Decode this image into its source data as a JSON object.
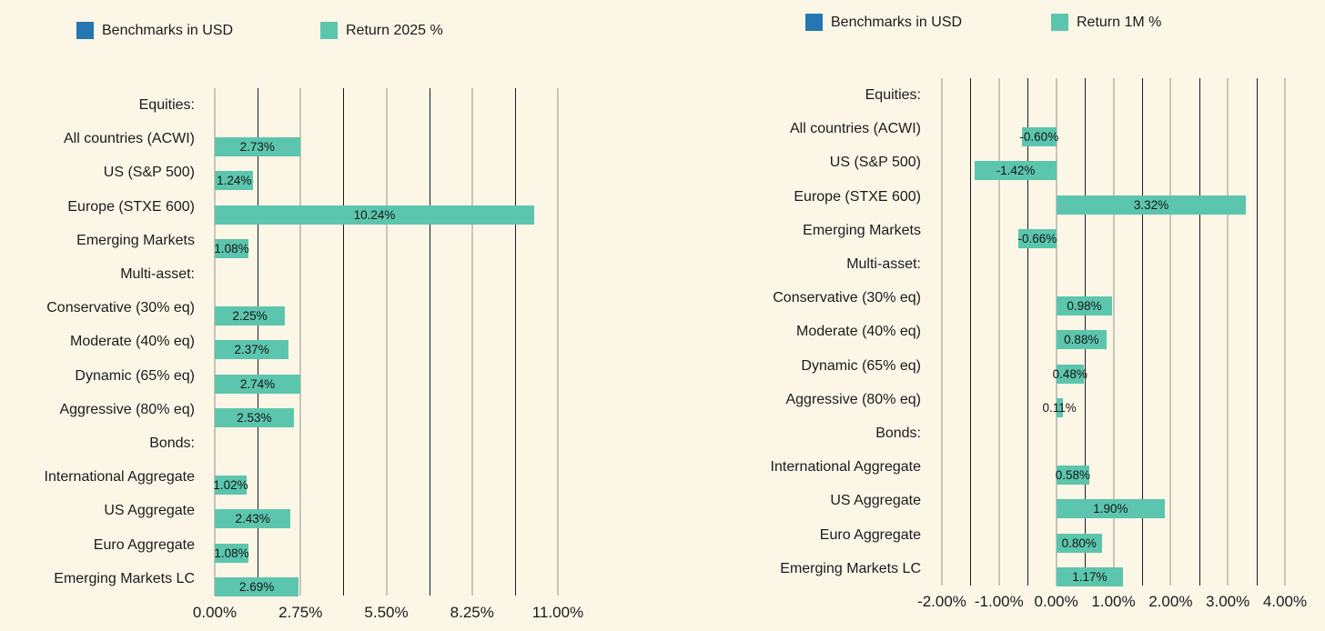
{
  "background_color": "#FCF6E7",
  "colors": {
    "bar_teal": "#5CC5AD",
    "legend_blue": "#2577B2",
    "text": "#1B1B1B",
    "grid_major": "#C9C4B9",
    "grid_minor": "#1C1C1C"
  },
  "chart_data": [
    {
      "type": "bar",
      "orientation": "horizontal",
      "legend": [
        {
          "label": "Benchmarks in USD",
          "color": "#2577B2"
        },
        {
          "label": "Return 2025 %",
          "color": "#5CC5AD"
        }
      ],
      "axis": {
        "min": 0,
        "max": 11,
        "major_ticks": [
          {
            "value": 0,
            "label": "0.00%"
          },
          {
            "value": 2.75,
            "label": "2.75%"
          },
          {
            "value": 5.5,
            "label": "5.50%"
          },
          {
            "value": 8.25,
            "label": "8.25%"
          },
          {
            "value": 11,
            "label": "11.00%"
          }
        ],
        "minor_values": [
          1.375,
          4.125,
          6.875,
          9.625
        ]
      },
      "rows": [
        {
          "label": "Equities:",
          "header": true
        },
        {
          "label": "All countries (ACWI)",
          "value": 2.73,
          "value_label": "2.73%"
        },
        {
          "label": "US (S&P 500)",
          "value": 1.24,
          "value_label": "1.24%"
        },
        {
          "label": "Europe (STXE 600)",
          "value": 10.24,
          "value_label": "10.24%"
        },
        {
          "label": "Emerging Markets",
          "value": 1.08,
          "value_label": "1.08%"
        },
        {
          "label": "Multi-asset:",
          "header": true
        },
        {
          "label": "Conservative (30% eq)",
          "value": 2.25,
          "value_label": "2.25%"
        },
        {
          "label": "Moderate (40% eq)",
          "value": 2.37,
          "value_label": "2.37%"
        },
        {
          "label": "Dynamic (65% eq)",
          "value": 2.74,
          "value_label": "2.74%"
        },
        {
          "label": "Aggressive (80% eq)",
          "value": 2.53,
          "value_label": "2.53%"
        },
        {
          "label": "Bonds:",
          "header": true
        },
        {
          "label": "International Aggregate",
          "value": 1.02,
          "value_label": "1.02%"
        },
        {
          "label": "US Aggregate",
          "value": 2.43,
          "value_label": "2.43%"
        },
        {
          "label": "Euro Aggregate",
          "value": 1.08,
          "value_label": "1.08%"
        },
        {
          "label": "Emerging Markets LC",
          "value": 2.69,
          "value_label": "2.69%"
        }
      ]
    },
    {
      "type": "bar",
      "orientation": "horizontal",
      "legend": [
        {
          "label": "Benchmarks in USD",
          "color": "#2577B2"
        },
        {
          "label": "Return 1M %",
          "color": "#5CC5AD"
        }
      ],
      "axis": {
        "min": -2,
        "max": 4,
        "major_ticks": [
          {
            "value": -2,
            "label": "-2.00%"
          },
          {
            "value": -1,
            "label": "-1.00%"
          },
          {
            "value": 0,
            "label": "0.00%"
          },
          {
            "value": 1,
            "label": "1.00%"
          },
          {
            "value": 2,
            "label": "2.00%"
          },
          {
            "value": 3,
            "label": "3.00%"
          },
          {
            "value": 4,
            "label": "4.00%"
          }
        ],
        "minor_values": [
          -1.5,
          -0.5,
          0.5,
          1.5,
          2.5,
          3.5
        ]
      },
      "rows": [
        {
          "label": "Equities:",
          "header": true
        },
        {
          "label": "All countries (ACWI)",
          "value": -0.6,
          "value_label": "-0.60%"
        },
        {
          "label": "US (S&P 500)",
          "value": -1.42,
          "value_label": "-1.42%"
        },
        {
          "label": "Europe (STXE 600)",
          "value": 3.32,
          "value_label": "3.32%"
        },
        {
          "label": "Emerging Markets",
          "value": -0.66,
          "value_label": "-0.66%"
        },
        {
          "label": "Multi-asset:",
          "header": true
        },
        {
          "label": "Conservative (30% eq)",
          "value": 0.98,
          "value_label": "0.98%"
        },
        {
          "label": "Moderate (40% eq)",
          "value": 0.88,
          "value_label": "0.88%"
        },
        {
          "label": "Dynamic (65% eq)",
          "value": 0.48,
          "value_label": "0.48%"
        },
        {
          "label": "Aggressive (80% eq)",
          "value": 0.11,
          "value_label": "0.11%"
        },
        {
          "label": "Bonds:",
          "header": true
        },
        {
          "label": "International Aggregate",
          "value": 0.58,
          "value_label": "0.58%"
        },
        {
          "label": "US Aggregate",
          "value": 1.9,
          "value_label": "1.90%"
        },
        {
          "label": "Euro Aggregate",
          "value": 0.8,
          "value_label": "0.80%"
        },
        {
          "label": "Emerging Markets LC",
          "value": 1.17,
          "value_label": "1.17%"
        }
      ]
    }
  ]
}
